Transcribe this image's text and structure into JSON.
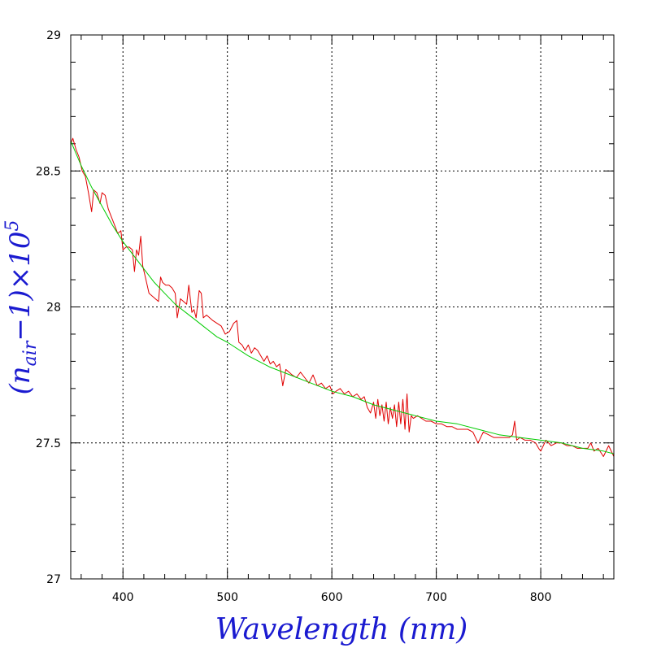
{
  "chart_data": {
    "type": "line",
    "xlabel": "Wavelength (nm)",
    "ylabel": {
      "prefix": "(n",
      "subscript": "air",
      "middle": "−1)×10",
      "superscript": "5"
    },
    "xlim": [
      350,
      870
    ],
    "ylim": [
      27,
      29
    ],
    "x_ticks": [
      400,
      500,
      600,
      700,
      800
    ],
    "y_ticks": [
      27,
      27.5,
      28,
      28.5,
      29
    ],
    "grid": true,
    "grid_style": "dotted",
    "colors": {
      "measured": "#e00000",
      "model": "#00cc00",
      "axis_title": "#1a1ad0"
    },
    "series": [
      {
        "color": "#e00000",
        "x": [
          350,
          352,
          355,
          358,
          361,
          364,
          367,
          370,
          372,
          375,
          378,
          380,
          383,
          386,
          389,
          392,
          395,
          398,
          400,
          403,
          406,
          409,
          411,
          413,
          415,
          417,
          419,
          422,
          425,
          428,
          431,
          434,
          436,
          438,
          441,
          444,
          447,
          450,
          452,
          455,
          458,
          461,
          463,
          466,
          468,
          470,
          473,
          475,
          477,
          480,
          483,
          486,
          490,
          494,
          498,
          502,
          506,
          509,
          511,
          514,
          517,
          520,
          523,
          526,
          529,
          532,
          535,
          538,
          541,
          544,
          547,
          550,
          553,
          556,
          559,
          562,
          566,
          570,
          574,
          578,
          582,
          586,
          590,
          594,
          598,
          601,
          604,
          608,
          612,
          616,
          620,
          624,
          628,
          631,
          634,
          637,
          640,
          642,
          644,
          646,
          648,
          650,
          652,
          654,
          656,
          658,
          660,
          662,
          664,
          666,
          668,
          670,
          672,
          674,
          676,
          678,
          682,
          686,
          690,
          695,
          700,
          705,
          710,
          715,
          720,
          725,
          730,
          735,
          740,
          745,
          750,
          755,
          760,
          765,
          770,
          773,
          775,
          777,
          780,
          785,
          790,
          795,
          798,
          800,
          805,
          810,
          815,
          820,
          825,
          830,
          835,
          840,
          845,
          848,
          851,
          855,
          860,
          865,
          870
        ],
        "values": [
          28.6,
          28.62,
          28.58,
          28.55,
          28.5,
          28.48,
          28.42,
          28.35,
          28.43,
          28.42,
          28.38,
          28.42,
          28.41,
          28.36,
          28.33,
          28.3,
          28.27,
          28.28,
          28.21,
          28.22,
          28.22,
          28.21,
          28.13,
          28.21,
          28.19,
          28.26,
          28.15,
          28.1,
          28.05,
          28.04,
          28.03,
          28.02,
          28.11,
          28.09,
          28.08,
          28.08,
          28.07,
          28.05,
          27.96,
          28.03,
          28.02,
          28.01,
          28.08,
          27.98,
          27.99,
          27.96,
          28.06,
          28.05,
          27.96,
          27.97,
          27.96,
          27.95,
          27.94,
          27.93,
          27.9,
          27.91,
          27.94,
          27.95,
          27.87,
          27.86,
          27.84,
          27.86,
          27.83,
          27.85,
          27.84,
          27.82,
          27.8,
          27.82,
          27.79,
          27.8,
          27.78,
          27.79,
          27.71,
          27.77,
          27.76,
          27.75,
          27.74,
          27.76,
          27.74,
          27.72,
          27.75,
          27.71,
          27.72,
          27.7,
          27.71,
          27.68,
          27.69,
          27.7,
          27.68,
          27.69,
          27.67,
          27.68,
          27.66,
          27.67,
          27.63,
          27.61,
          27.65,
          27.59,
          27.66,
          27.6,
          27.64,
          27.58,
          27.65,
          27.57,
          27.63,
          27.59,
          27.64,
          27.56,
          27.65,
          27.57,
          27.66,
          27.55,
          27.68,
          27.54,
          27.6,
          27.59,
          27.6,
          27.59,
          27.58,
          27.58,
          27.57,
          27.57,
          27.56,
          27.56,
          27.55,
          27.55,
          27.55,
          27.54,
          27.5,
          27.54,
          27.53,
          27.52,
          27.52,
          27.52,
          27.52,
          27.53,
          27.58,
          27.51,
          27.52,
          27.51,
          27.51,
          27.5,
          27.48,
          27.47,
          27.51,
          27.49,
          27.5,
          27.5,
          27.49,
          27.49,
          27.48,
          27.48,
          27.48,
          27.5,
          27.47,
          27.48,
          27.45,
          27.49,
          27.45
        ]
      },
      {
        "color": "#00cc00",
        "x": [
          350,
          360,
          370,
          380,
          390,
          400,
          410,
          420,
          430,
          440,
          450,
          460,
          470,
          480,
          490,
          500,
          520,
          540,
          560,
          580,
          600,
          620,
          640,
          660,
          680,
          700,
          720,
          740,
          760,
          780,
          800,
          820,
          840,
          860,
          870
        ],
        "values": [
          28.61,
          28.52,
          28.44,
          28.37,
          28.3,
          28.24,
          28.19,
          28.14,
          28.09,
          28.05,
          28.01,
          27.98,
          27.95,
          27.92,
          27.89,
          27.87,
          27.82,
          27.78,
          27.75,
          27.72,
          27.69,
          27.67,
          27.64,
          27.62,
          27.6,
          27.58,
          27.57,
          27.55,
          27.53,
          27.52,
          27.51,
          27.5,
          27.48,
          27.47,
          27.46
        ]
      }
    ]
  }
}
